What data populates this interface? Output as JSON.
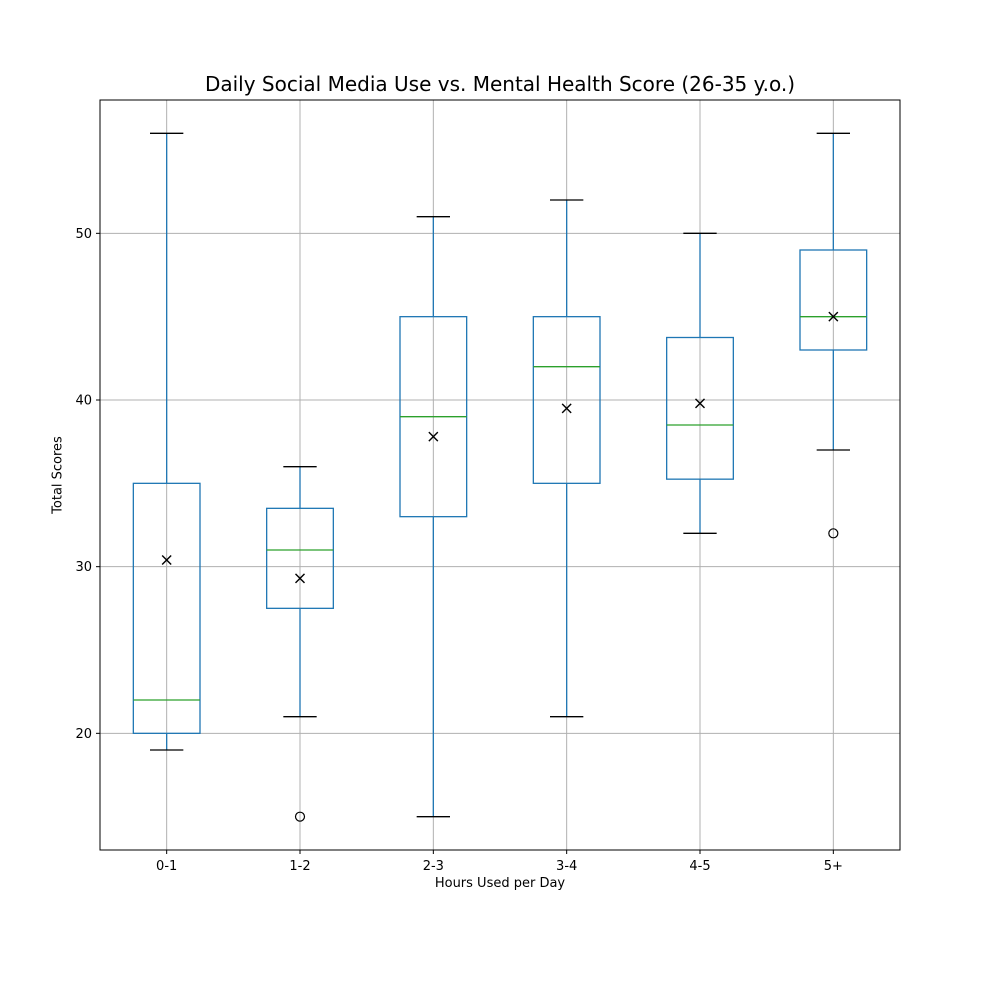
{
  "chart_data": {
    "type": "box",
    "title": "Daily Social Media Use vs. Mental Health Score (26-35 y.o.)",
    "xlabel": "Hours Used per Day",
    "ylabel": "Total Scores",
    "ylim": [
      13,
      58
    ],
    "yticks": [
      20,
      30,
      40,
      50
    ],
    "grid": true,
    "categories": [
      "0-1",
      "1-2",
      "2-3",
      "3-4",
      "4-5",
      "5+"
    ],
    "boxes": [
      {
        "category": "0-1",
        "whisker_low": 19,
        "q1": 20,
        "median": 22,
        "q3": 35,
        "whisker_high": 56,
        "mean": 30.4,
        "outliers": []
      },
      {
        "category": "1-2",
        "whisker_low": 21,
        "q1": 27.5,
        "median": 31,
        "q3": 33.5,
        "whisker_high": 36,
        "mean": 29.3,
        "outliers": [
          15
        ]
      },
      {
        "category": "2-3",
        "whisker_low": 15,
        "q1": 33,
        "median": 39,
        "q3": 45,
        "whisker_high": 51,
        "mean": 37.8,
        "outliers": []
      },
      {
        "category": "3-4",
        "whisker_low": 21,
        "q1": 35,
        "median": 42,
        "q3": 45,
        "whisker_high": 52,
        "mean": 39.5,
        "outliers": []
      },
      {
        "category": "4-5",
        "whisker_low": 32,
        "q1": 35.25,
        "median": 38.5,
        "q3": 43.75,
        "whisker_high": 50,
        "mean": 39.8,
        "outliers": []
      },
      {
        "category": "5+",
        "whisker_low": 37,
        "q1": 43,
        "median": 45,
        "q3": 49,
        "whisker_high": 56,
        "mean": 45,
        "outliers": [
          32
        ]
      }
    ],
    "colors": {
      "box": "#1f77b4",
      "median": "#2ca02c",
      "whisker_cap": "#000000",
      "grid": "#b0b0b0"
    }
  }
}
